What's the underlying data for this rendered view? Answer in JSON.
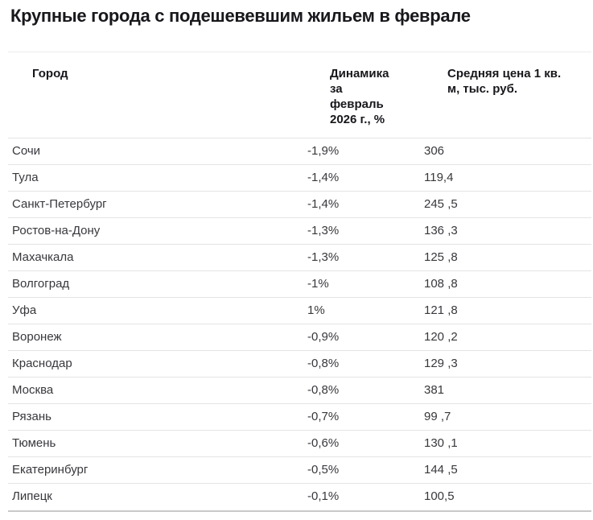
{
  "title": "Крупные города с подешевевшим жильем в феврале",
  "table": {
    "columns": [
      {
        "id": "city",
        "label": "Город"
      },
      {
        "id": "dynamics",
        "label": "Динамика\nза\nфевраль\n2026 г., %"
      },
      {
        "id": "price",
        "label": "Средняя цена 1 кв.\nм, тыс. руб."
      }
    ],
    "rows": [
      {
        "city": "Сочи",
        "dynamics": "-1,9%",
        "price": "306"
      },
      {
        "city": "Тула",
        "dynamics": "-1,4%",
        "price": "119,4"
      },
      {
        "city": "Санкт-Петербург",
        "dynamics": "-1,4%",
        "price": "245 ,5"
      },
      {
        "city": "Ростов-на-Дону",
        "dynamics": "-1,3%",
        "price": "136 ,3"
      },
      {
        "city": "Махачкала",
        "dynamics": "-1,3%",
        "price": "125 ,8"
      },
      {
        "city": "Волгоград",
        "dynamics": "-1%",
        "price": "108 ,8"
      },
      {
        "city": "Уфа",
        "dynamics": "1%",
        "price": "121 ,8"
      },
      {
        "city": "Воронеж",
        "dynamics": "-0,9%",
        "price": "120 ,2"
      },
      {
        "city": "Краснодар",
        "dynamics": "-0,8%",
        "price": "129 ,3"
      },
      {
        "city": "Москва",
        "dynamics": "-0,8%",
        "price": "381"
      },
      {
        "city": "Рязань",
        "dynamics": "-0,7%",
        "price": "99 ,7"
      },
      {
        "city": "Тюмень",
        "dynamics": "-0,6%",
        "price": "130 ,1"
      },
      {
        "city": "Екатеринбург",
        "dynamics": "-0,5%",
        "price": "144 ,5"
      },
      {
        "city": "Липецк",
        "dynamics": "-0,1%",
        "price": "100,5"
      }
    ]
  },
  "colors": {
    "background": "#ffffff",
    "title_text": "#17171c",
    "body_text": "#38383d",
    "divider": "#e4e4e4",
    "bottom_border": "#c9c9c9"
  },
  "chart_data": {
    "type": "table",
    "title": "Крупные города с подешевевшим жильем в феврале",
    "columns": [
      "Город",
      "Динамика за февраль 2026 г., %",
      "Средняя цена 1 кв. м, тыс. руб."
    ],
    "cities": [
      "Сочи",
      "Тула",
      "Санкт-Петербург",
      "Ростов-на-Дону",
      "Махачкала",
      "Волгоград",
      "Уфа",
      "Воронеж",
      "Краснодар",
      "Москва",
      "Рязань",
      "Тюмень",
      "Екатеринбург",
      "Липецк"
    ],
    "dynamics_february_2026_pct": [
      -1.9,
      -1.4,
      -1.4,
      -1.3,
      -1.3,
      -1.0,
      1.0,
      -0.9,
      -0.8,
      -0.8,
      -0.7,
      -0.6,
      -0.5,
      -0.1
    ],
    "avg_price_per_sqm_thousand_rub": [
      306,
      119.4,
      245.5,
      136.3,
      125.8,
      108.8,
      121.8,
      120.2,
      129.3,
      381,
      99.7,
      130.1,
      144.5,
      100.5
    ]
  }
}
